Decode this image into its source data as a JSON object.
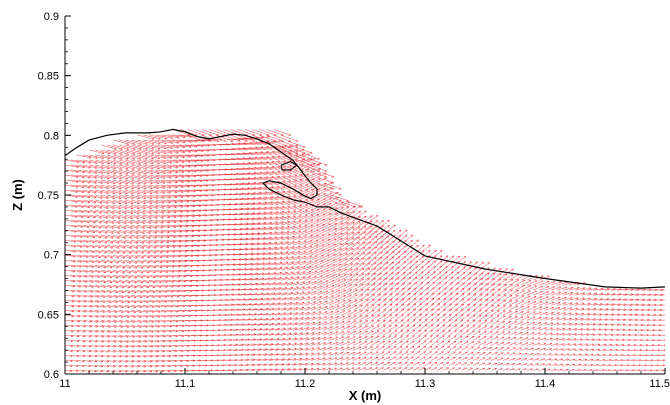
{
  "chart_data": {
    "type": "vector-field",
    "title": "",
    "xlabel": "X (m)",
    "ylabel": "Z (m)",
    "xlim": [
      11.0,
      11.5
    ],
    "ylim": [
      0.6,
      0.9
    ],
    "x_ticks": [
      {
        "value": 11.0,
        "label": "11"
      },
      {
        "value": 11.1,
        "label": "11.1"
      },
      {
        "value": 11.2,
        "label": "11.2"
      },
      {
        "value": 11.3,
        "label": "11.3"
      },
      {
        "value": 11.4,
        "label": "11.4"
      },
      {
        "value": 11.5,
        "label": "11.5"
      }
    ],
    "y_ticks": [
      {
        "value": 0.6,
        "label": "0.6"
      },
      {
        "value": 0.65,
        "label": "0.65"
      },
      {
        "value": 0.7,
        "label": "0.7"
      },
      {
        "value": 0.75,
        "label": "0.75"
      },
      {
        "value": 0.8,
        "label": "0.8"
      },
      {
        "value": 0.85,
        "label": "0.85"
      },
      {
        "value": 0.9,
        "label": "0.9"
      }
    ],
    "grid": false,
    "vector_color": "#e8232a",
    "surface_color": "#000000",
    "free_surface": [
      [
        11.0,
        0.783
      ],
      [
        11.01,
        0.79
      ],
      [
        11.02,
        0.796
      ],
      [
        11.035,
        0.8
      ],
      [
        11.05,
        0.802
      ],
      [
        11.07,
        0.802
      ],
      [
        11.08,
        0.803
      ],
      [
        11.09,
        0.805
      ],
      [
        11.1,
        0.803
      ],
      [
        11.11,
        0.799
      ],
      [
        11.12,
        0.797
      ],
      [
        11.13,
        0.799
      ],
      [
        11.14,
        0.801
      ],
      [
        11.15,
        0.8
      ],
      [
        11.16,
        0.797
      ],
      [
        11.17,
        0.793
      ],
      [
        11.18,
        0.786
      ],
      [
        11.19,
        0.779
      ],
      [
        11.195,
        0.773
      ],
      [
        11.2,
        0.766
      ],
      [
        11.205,
        0.76
      ],
      [
        11.21,
        0.755
      ],
      [
        11.21,
        0.75
      ],
      [
        11.205,
        0.747
      ],
      [
        11.2,
        0.749
      ],
      [
        11.19,
        0.755
      ],
      [
        11.18,
        0.76
      ],
      [
        11.17,
        0.762
      ],
      [
        11.165,
        0.76
      ],
      [
        11.17,
        0.755
      ],
      [
        11.18,
        0.75
      ],
      [
        11.19,
        0.746
      ],
      [
        11.2,
        0.744
      ],
      [
        11.205,
        0.742
      ],
      [
        11.21,
        0.74
      ],
      [
        11.22,
        0.74
      ],
      [
        11.23,
        0.735
      ],
      [
        11.26,
        0.724
      ],
      [
        11.3,
        0.699
      ],
      [
        11.35,
        0.688
      ],
      [
        11.4,
        0.68
      ],
      [
        11.45,
        0.673
      ],
      [
        11.48,
        0.672
      ],
      [
        11.5,
        0.673
      ]
    ],
    "surface_loop": [
      [
        11.18,
        0.775
      ],
      [
        11.188,
        0.778
      ],
      [
        11.193,
        0.775
      ],
      [
        11.188,
        0.771
      ],
      [
        11.181,
        0.771
      ],
      [
        11.18,
        0.775
      ]
    ]
  }
}
